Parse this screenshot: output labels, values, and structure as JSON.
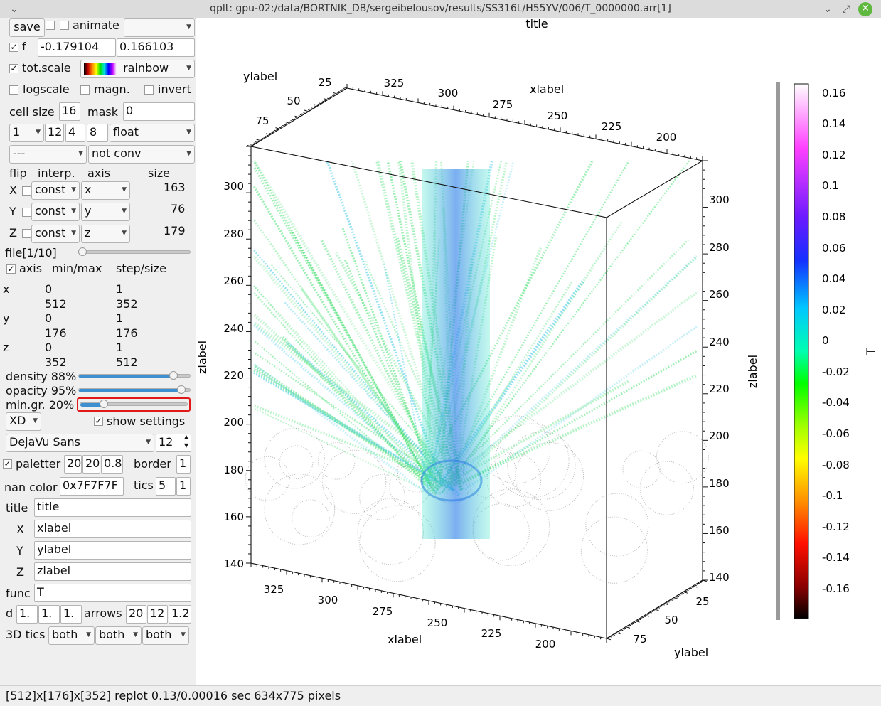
{
  "window": {
    "title": "qplt: gpu-02:/data/BORTNIK_DB/sergeibelousov/results/SS316L/H55YV/006/T_0000000.arr[1]",
    "menu_glyph": "⌄",
    "btn_minimize": "⌄",
    "btn_restore": "⤢",
    "btn_close": "✕"
  },
  "panel": {
    "save": "save",
    "animate": "animate",
    "animate_combo": "",
    "f_label": "f",
    "f_min": "-0.179104",
    "f_max": "0.166103",
    "totscale": "tot.scale",
    "palette": "rainbow",
    "logscale": "logscale",
    "magn": "magn.",
    "invert": "invert",
    "cellsize_label": "cell size",
    "cellsize": "16",
    "mask_label": "mask",
    "mask": "0",
    "row_a": "1",
    "row_b": "12",
    "row_c": "4",
    "row_d": "8",
    "dtype": "float",
    "conv_a": "---",
    "conv_b": "not conv",
    "hdr_flip": "flip",
    "hdr_interp": "interp.",
    "hdr_axis": "axis",
    "hdr_size": "size",
    "axes": [
      {
        "label": "X",
        "interp": "const",
        "axis": "x",
        "size": "163"
      },
      {
        "label": "Y",
        "interp": "const",
        "axis": "y",
        "size": "76"
      },
      {
        "label": "Z",
        "interp": "const",
        "axis": "z",
        "size": "179"
      }
    ],
    "file_label": "file[1/10]",
    "file_pos": 0,
    "axis_chk": "axis",
    "minmax_hdr": "min/max",
    "stepsize_hdr": "step/size",
    "ranges": [
      {
        "name": "x",
        "min": "0",
        "max": "512",
        "step": "1",
        "size": "352"
      },
      {
        "name": "y",
        "min": "0",
        "max": "176",
        "step": "1",
        "size": "176"
      },
      {
        "name": "z",
        "min": "0",
        "max": "352",
        "step": "1",
        "size": "512"
      }
    ],
    "density_label": "density 88%",
    "density": 0.88,
    "opacity_label": "opacity 95%",
    "opacity": 0.95,
    "mingr_label": "min.gr. 20%",
    "mingr": 0.2,
    "view_mode": "XD",
    "show_settings": "show settings",
    "font_family": "DejaVu Sans",
    "font_size": "12",
    "paletter": "paletter",
    "pal_a": "20",
    "pal_b": "20",
    "pal_c": "0.8",
    "border_label": "border",
    "border": "1",
    "nancolor_label": "nan color",
    "nancolor": "0x7F7F7F",
    "tics_label": "tics",
    "tics_a": "5",
    "tics_b": "1",
    "title_label": "title",
    "title_val": "title",
    "x_label": "X",
    "x_val": "xlabel",
    "y_label": "Y",
    "y_val": "ylabel",
    "z_label": "Z",
    "z_val": "zlabel",
    "func_label": "func",
    "func_val": "T",
    "d_label": "d",
    "d_a": "1.",
    "d_b": "1.",
    "d_c": "1.",
    "arrows_label": "arrows",
    "ar_a": "20",
    "ar_b": "12",
    "ar_c": "1.2",
    "tics3d_label": "3D tics",
    "tics3d_a": "both",
    "tics3d_b": "both",
    "tics3d_c": "both"
  },
  "plot": {
    "title": "title",
    "xlabel": "xlabel",
    "ylabel": "ylabel",
    "zlabel": "zlabel",
    "cbar_label": "T",
    "z_ticks": [
      "300",
      "280",
      "260",
      "240",
      "220",
      "200",
      "180",
      "160",
      "140"
    ],
    "x_ticks": [
      "325",
      "300",
      "275",
      "250",
      "225",
      "200"
    ],
    "y_ticks": [
      "75",
      "50",
      "25"
    ],
    "cbar_ticks": [
      "0.16",
      "0.14",
      "0.12",
      "0.1",
      "0.08",
      "0.06",
      "0.04",
      "0.02",
      "0",
      "-0.02",
      "-0.04",
      "-0.06",
      "-0.08",
      "-0.1",
      "-0.12",
      "-0.14",
      "-0.16"
    ],
    "colors": {
      "green": "#44e070",
      "blue": "#2e6ae6",
      "cyan": "#33c6e6",
      "grid": "#666666"
    }
  },
  "status": "[512]x[176]x[352] replot 0.13/0.00016 sec  634x775 pixels"
}
